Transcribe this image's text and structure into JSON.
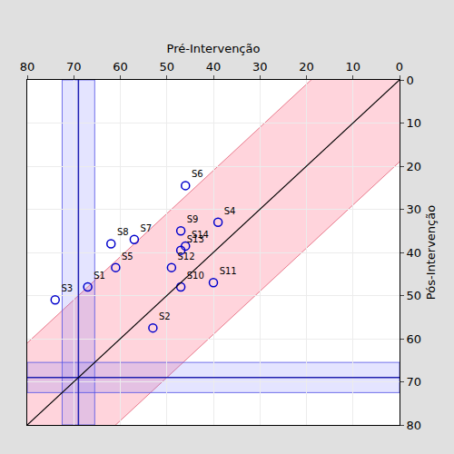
{
  "chart_data": {
    "type": "scatter",
    "x_label": "Pré-Intervenção",
    "y_label": "Pós-Intervenção",
    "xlim": [
      80,
      0
    ],
    "ylim": [
      80,
      0
    ],
    "xticks": [
      0,
      10,
      20,
      30,
      40,
      50,
      60,
      70,
      80
    ],
    "yticks": [
      0,
      10,
      20,
      30,
      40,
      50,
      60,
      70,
      80
    ],
    "grid": true,
    "marker": "open circle",
    "color": "#0000cc",
    "points": [
      {
        "label": "S1",
        "x": 67,
        "y": 48
      },
      {
        "label": "S2",
        "x": 53,
        "y": 57.5
      },
      {
        "label": "S3",
        "x": 74,
        "y": 51
      },
      {
        "label": "S4",
        "x": 39,
        "y": 33
      },
      {
        "label": "S5",
        "x": 61,
        "y": 43.5
      },
      {
        "label": "S6",
        "x": 46,
        "y": 24.5
      },
      {
        "label": "S7",
        "x": 57,
        "y": 37
      },
      {
        "label": "S8",
        "x": 62,
        "y": 38
      },
      {
        "label": "S9",
        "x": 47,
        "y": 35
      },
      {
        "label": "S10",
        "x": 47,
        "y": 48
      },
      {
        "label": "S11",
        "x": 40,
        "y": 47
      },
      {
        "label": "S12",
        "x": 49,
        "y": 43.5
      },
      {
        "label": "S13",
        "x": 47,
        "y": 39.5
      },
      {
        "label": "S14",
        "x": 46,
        "y": 38.5
      }
    ],
    "identity_line": true,
    "band_halfwidth": 19,
    "x_mean": 69,
    "x_band": [
      65.5,
      72.5
    ],
    "y_mean": 69,
    "y_band": [
      65.5,
      72.5
    ]
  }
}
